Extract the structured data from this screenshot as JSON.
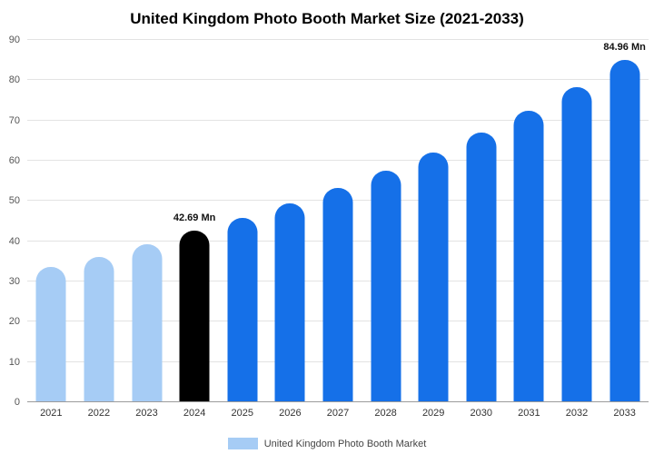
{
  "chart_data": {
    "type": "bar",
    "title": "United Kingdom Photo Booth Market Size (2021-2033)",
    "xlabel": "",
    "ylabel": "",
    "ylim": [
      0,
      90
    ],
    "yticks": [
      0,
      10,
      20,
      30,
      40,
      50,
      60,
      70,
      80,
      90
    ],
    "grid": true,
    "legend_position": "bottom",
    "legend": "United Kingdom Photo Booth Market",
    "legend_color": "#a6ccf5",
    "categories": [
      "2021",
      "2022",
      "2023",
      "2024",
      "2025",
      "2026",
      "2027",
      "2028",
      "2029",
      "2030",
      "2031",
      "2032",
      "2033"
    ],
    "values": [
      33.5,
      36.2,
      39.2,
      42.69,
      45.8,
      49.3,
      53.3,
      57.5,
      62.1,
      67.1,
      72.4,
      78.2,
      84.96
    ],
    "bar_colors": [
      "#a6ccf5",
      "#a6ccf5",
      "#a6ccf5",
      "#000000",
      "#1570e8",
      "#1570e8",
      "#1570e8",
      "#1570e8",
      "#1570e8",
      "#1570e8",
      "#1570e8",
      "#1570e8",
      "#1570e8"
    ],
    "point_labels": [
      "",
      "",
      "",
      "42.69 Mn",
      "",
      "",
      "",
      "",
      "",
      "",
      "",
      "",
      "84.96 Mn"
    ]
  }
}
